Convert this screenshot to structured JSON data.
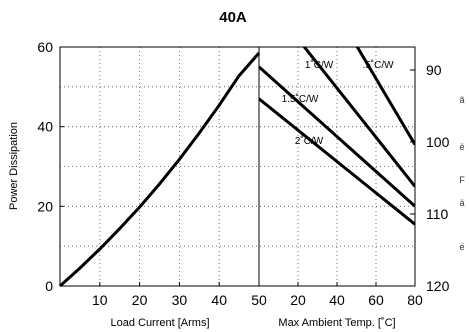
{
  "chart_data": {
    "type": "line",
    "title": "40A",
    "ylabel": "Power Dissipation",
    "ylim": [
      0,
      60
    ],
    "yticks": [
      "0",
      "20",
      "40",
      "60"
    ],
    "grid": true,
    "left_panel": {
      "xlabel": "Load Current  [Arms]",
      "xlim": [
        0,
        50
      ],
      "xticks": [
        "10",
        "20",
        "30",
        "40",
        "50"
      ],
      "series": [
        {
          "x": [
            0,
            5,
            10,
            15,
            20,
            25,
            30,
            35,
            40,
            45,
            50
          ],
          "y": [
            0,
            4.5,
            9.3,
            14.4,
            19.8,
            25.6,
            31.8,
            38.4,
            45.4,
            52.8,
            58.5
          ]
        }
      ]
    },
    "right_panel": {
      "xlabel": "Max Ambient Temp. [˚C]",
      "xlim": [
        0,
        80
      ],
      "xticks": [
        "20",
        "40",
        "60",
        "80"
      ],
      "y2_ticks": [
        "90",
        "100",
        "110",
        "120"
      ],
      "series": [
        {
          "name": ".5˚C/W",
          "x": [
            48,
            80
          ],
          "y": [
            62,
            35.5
          ]
        },
        {
          "name": "1˚C/W",
          "x": [
            20,
            80
          ],
          "y": [
            62,
            25
          ]
        },
        {
          "name": "1.5˚C/W",
          "x": [
            0,
            80
          ],
          "y": [
            55,
            20
          ]
        },
        {
          "name": "2˚C/W",
          "x": [
            0,
            80
          ],
          "y": [
            47,
            15.5
          ]
        }
      ]
    },
    "edge_glyphs": [
      "ã",
      "ë",
      "F",
      "ä",
      "ë"
    ]
  }
}
